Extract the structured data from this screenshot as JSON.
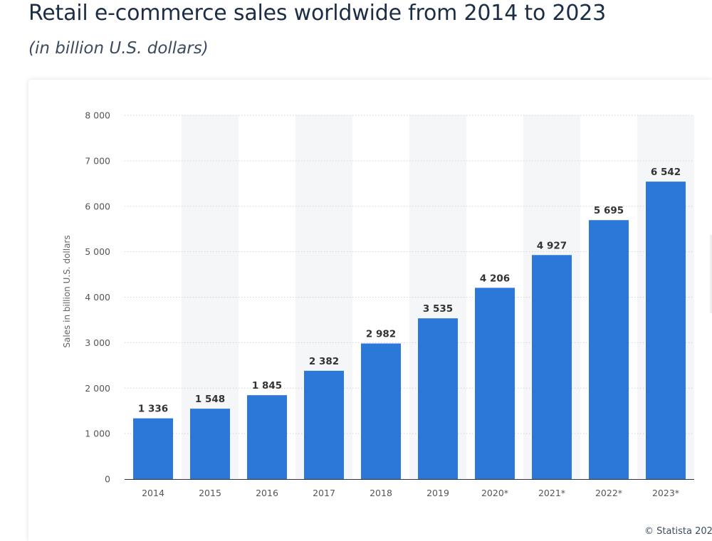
{
  "header": {
    "title": "Retail e-commerce sales worldwide from 2014 to 2023",
    "subtitle": "(in billion U.S. dollars)"
  },
  "footer": {
    "source": "© Statista 202"
  },
  "colors": {
    "bar": "#2b78d9",
    "grid": "#cfd4da",
    "band": "#f5f6f8",
    "axis_text": "#555555",
    "label_text": "#333333"
  },
  "chart_data": {
    "type": "bar",
    "title": "Retail e-commerce sales worldwide from 2014 to 2023",
    "subtitle": "(in billion U.S. dollars)",
    "xlabel": "",
    "ylabel": "Sales in billion U.S. dollars",
    "categories": [
      "2014",
      "2015",
      "2016",
      "2017",
      "2018",
      "2019",
      "2020*",
      "2021*",
      "2022*",
      "2023*"
    ],
    "values": [
      1336,
      1548,
      1845,
      2382,
      2982,
      3535,
      4206,
      4927,
      5695,
      6542
    ],
    "value_labels": [
      "1 336",
      "1 548",
      "1 845",
      "2 382",
      "2 982",
      "3 535",
      "4 206",
      "4 927",
      "5 695",
      "6 542"
    ],
    "ylim": [
      0,
      8000
    ],
    "yticks": [
      0,
      1000,
      2000,
      3000,
      4000,
      5000,
      6000,
      7000,
      8000
    ],
    "ytick_labels": [
      "0",
      "1 000",
      "2 000",
      "3 000",
      "4 000",
      "5 000",
      "6 000",
      "7 000",
      "8 000"
    ],
    "grid": true,
    "legend": "none"
  }
}
